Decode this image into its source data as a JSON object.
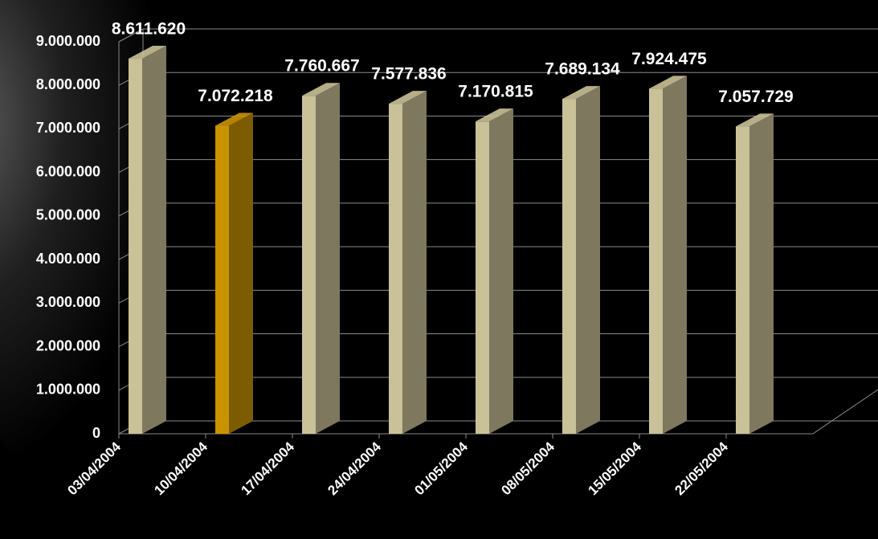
{
  "chart_data": {
    "type": "bar3d",
    "categories": [
      "03/04/2004",
      "10/04/2004",
      "17/04/2004",
      "24/04/2004",
      "01/05/2004",
      "08/05/2004",
      "15/05/2004",
      "22/05/2004"
    ],
    "values": [
      8611620,
      7072218,
      7760667,
      7577836,
      7170815,
      7689134,
      7924475,
      7057729
    ],
    "value_labels": [
      "8.611.620",
      "7.072.218",
      "7.760.667",
      "7.577.836",
      "7.170.815",
      "7.689.134",
      "7.924.475",
      "7.057.729"
    ],
    "colors": [
      "#c9c197",
      "#c99300",
      "#c9c197",
      "#c9c197",
      "#c9c197",
      "#c9c197",
      "#c9c197",
      "#c9c197"
    ],
    "ylim": [
      0,
      9000000
    ],
    "yticks": [
      {
        "value": 0,
        "label": "0"
      },
      {
        "value": 1000000,
        "label": "1.000.000"
      },
      {
        "value": 2000000,
        "label": "2.000.000"
      },
      {
        "value": 3000000,
        "label": "3.000.000"
      },
      {
        "value": 4000000,
        "label": "4.000.000"
      },
      {
        "value": 5000000,
        "label": "5.000.000"
      },
      {
        "value": 6000000,
        "label": "6.000.000"
      },
      {
        "value": 7000000,
        "label": "7.000.000"
      },
      {
        "value": 8000000,
        "label": "8.000.000"
      },
      {
        "value": 9000000,
        "label": "9.000.000"
      }
    ],
    "grid": true
  }
}
